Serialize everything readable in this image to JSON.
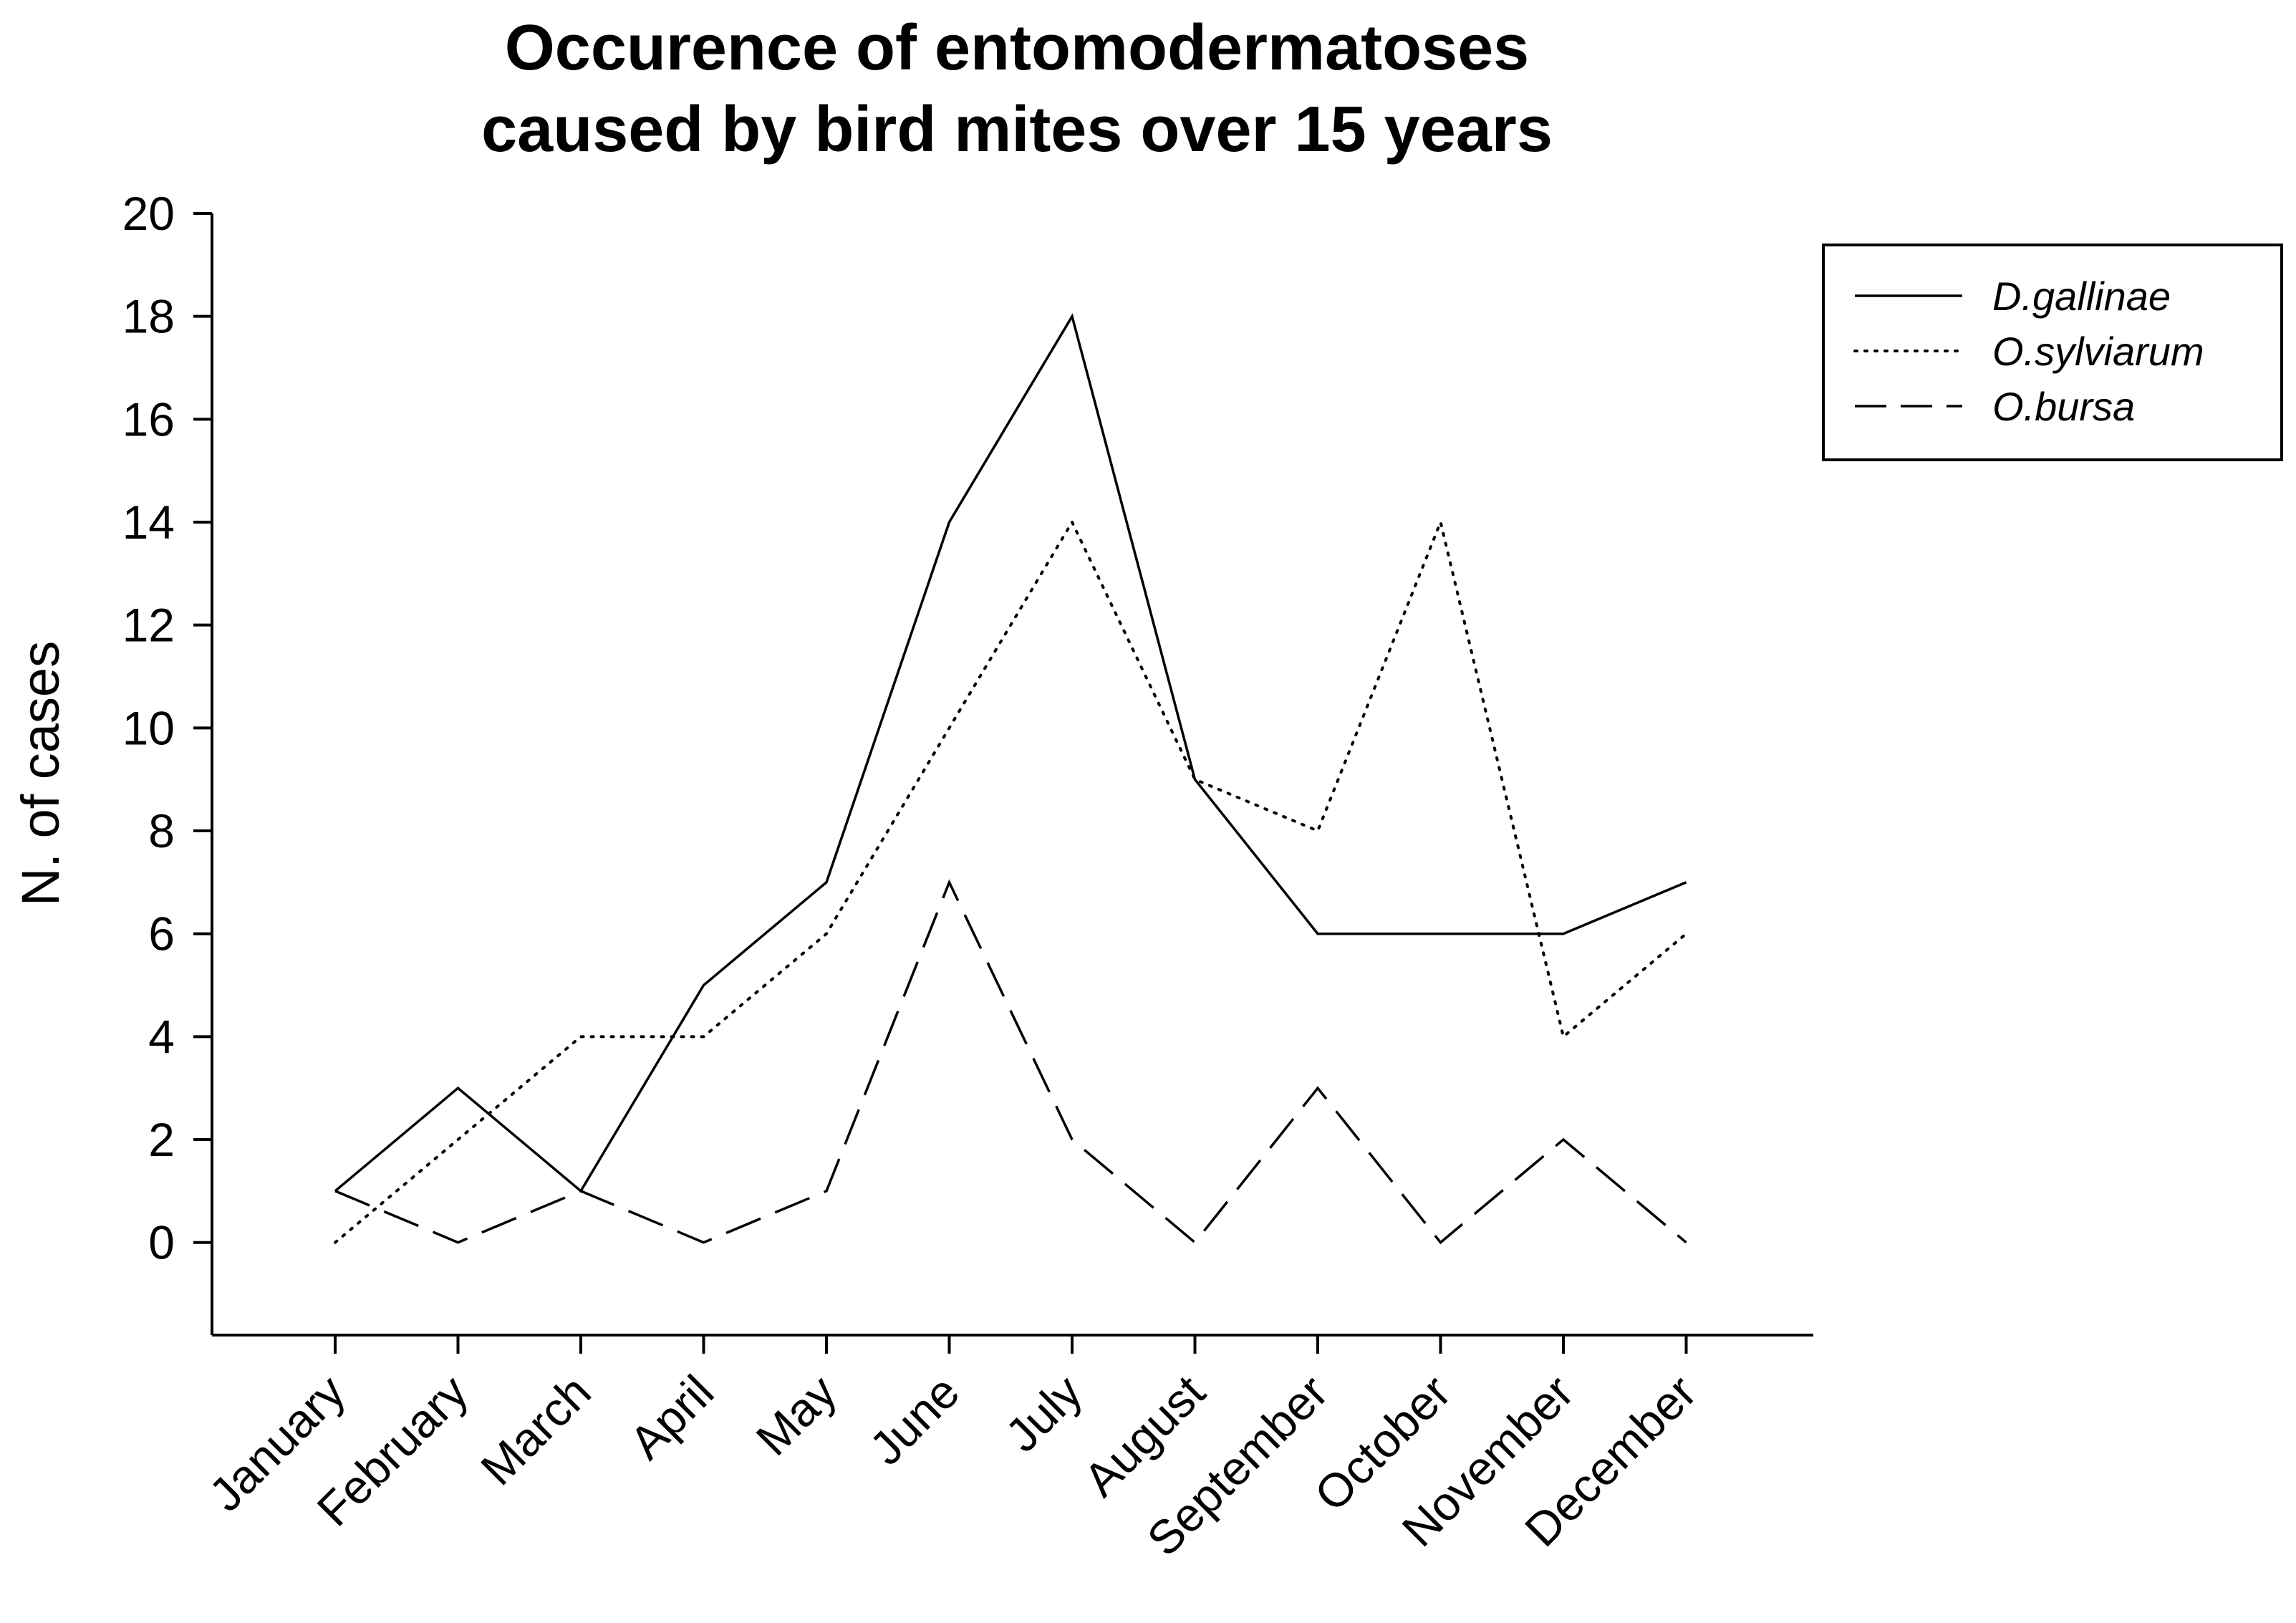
{
  "chart_data": {
    "type": "line",
    "title_lines": [
      "Occurence of entomodermatoses",
      "caused by bird mites over 15 years"
    ],
    "xlabel": "",
    "ylabel": "N. of cases",
    "categories": [
      "January",
      "February",
      "March",
      "April",
      "May",
      "June",
      "July",
      "August",
      "September",
      "October",
      "November",
      "December"
    ],
    "yticks": [
      0,
      2,
      4,
      6,
      8,
      10,
      12,
      14,
      16,
      18,
      20
    ],
    "ylim": [
      -1.8,
      20
    ],
    "grid": false,
    "legend_position": "top-right",
    "series": [
      {
        "name": "D.gallinae",
        "style": "solid",
        "values": [
          1,
          3,
          1,
          5,
          7,
          14,
          18,
          9,
          6,
          6,
          6,
          7
        ]
      },
      {
        "name": "O.sylviarum",
        "style": "dotted",
        "values": [
          0,
          2,
          4,
          4,
          6,
          10,
          14,
          9,
          8,
          14,
          4,
          6
        ]
      },
      {
        "name": "O.bursa",
        "style": "dashed",
        "values": [
          1,
          0,
          1,
          0,
          1,
          7,
          2,
          0,
          3,
          0,
          2,
          0
        ]
      }
    ],
    "line_color": "#000000"
  }
}
